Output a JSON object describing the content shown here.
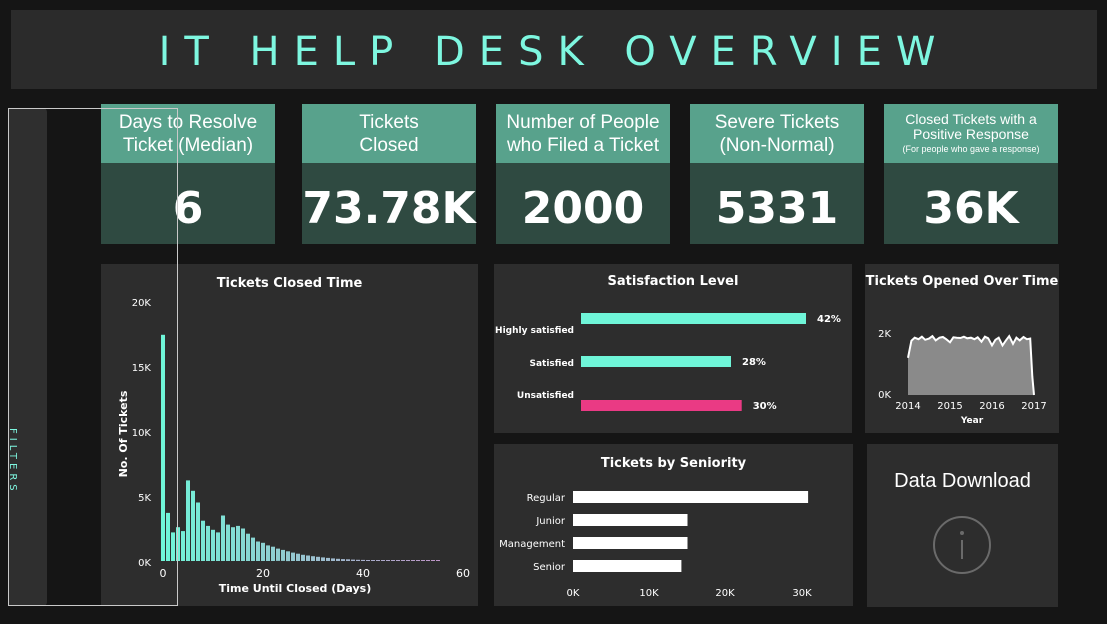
{
  "header": {
    "title": "IT HELP DESK OVERVIEW"
  },
  "filters": {
    "label": "FILTERS"
  },
  "kpis": [
    {
      "line1": "Days to Resolve",
      "line2": "Ticket (Median)",
      "value": "6"
    },
    {
      "line1": "Tickets",
      "line2": "Closed",
      "value": "73.78K"
    },
    {
      "line1": "Number of People",
      "line2": "who Filed a Ticket",
      "value": "2000"
    },
    {
      "line1": "Severe Tickets",
      "line2": "(Non-Normal)",
      "value": "5331"
    },
    {
      "line1": "Closed Tickets with a",
      "line2": "Positive Response",
      "note": "(For people who gave a response)",
      "value": "36K"
    }
  ],
  "colors": {
    "teal": "#6ff5d8",
    "pink": "#ea3a84",
    "kpi_header": "#58a28c",
    "kpi_body": "#2f4a41"
  },
  "data_download": {
    "title": "Data Download",
    "icon": "info-icon"
  },
  "chart_data": [
    {
      "type": "bar",
      "title": "Tickets Closed Time",
      "xlabel": "Time Until Closed (Days)",
      "ylabel": "No. Of Tickets",
      "xlim": [
        0,
        60
      ],
      "ylim": [
        0,
        20000
      ],
      "xticks": [
        "0",
        "20",
        "40",
        "60"
      ],
      "yticks": [
        "0K",
        "5K",
        "10K",
        "15K",
        "20K"
      ],
      "x": [
        0,
        1,
        2,
        3,
        4,
        5,
        6,
        7,
        8,
        9,
        10,
        11,
        12,
        13,
        14,
        15,
        16,
        17,
        18,
        19,
        20,
        21,
        22,
        23,
        24,
        25,
        26,
        27,
        28,
        29,
        30,
        31,
        32,
        33,
        34,
        35,
        36,
        37,
        38,
        39,
        40,
        41,
        42,
        43,
        44,
        45,
        46,
        47,
        48,
        49,
        50,
        51,
        52,
        53,
        54,
        55
      ],
      "values": [
        17400,
        3700,
        2200,
        2600,
        2300,
        6200,
        5400,
        4500,
        3100,
        2700,
        2400,
        2200,
        3500,
        2800,
        2600,
        2700,
        2500,
        2100,
        1800,
        1500,
        1400,
        1200,
        1100,
        950,
        850,
        750,
        650,
        560,
        480,
        420,
        370,
        320,
        280,
        240,
        200,
        170,
        150,
        130,
        110,
        95,
        85,
        75,
        65,
        55,
        45,
        40,
        35,
        30,
        28,
        25,
        20,
        18,
        16,
        14,
        12,
        10
      ]
    },
    {
      "type": "bar",
      "title": "Satisfaction Level",
      "categories": [
        "Highly satisfied",
        "Satisfied",
        "Unsatisfied"
      ],
      "values": [
        42,
        28,
        30
      ],
      "labels": [
        "42%",
        "28%",
        "30%"
      ]
    },
    {
      "type": "area",
      "title": "Tickets Opened Over Time",
      "xlabel": "Year",
      "xticks": [
        "2014",
        "2015",
        "2016",
        "2017"
      ],
      "yticks": [
        "0K",
        "2K"
      ],
      "ylim": [
        0,
        2000
      ],
      "x": [
        2014.0,
        2014.08,
        2014.16,
        2014.25,
        2014.33,
        2014.41,
        2014.5,
        2014.58,
        2014.66,
        2014.75,
        2014.83,
        2014.91,
        2015.0,
        2015.08,
        2015.16,
        2015.25,
        2015.33,
        2015.41,
        2015.5,
        2015.58,
        2015.66,
        2015.75,
        2015.83,
        2015.91,
        2016.0,
        2016.08,
        2016.16,
        2016.25,
        2016.33,
        2016.41,
        2016.5,
        2016.58,
        2016.66,
        2016.75,
        2016.83,
        2016.91,
        2016.96,
        2017.0
      ],
      "values": [
        1200,
        1750,
        1850,
        1800,
        1880,
        1780,
        1820,
        1900,
        1760,
        1850,
        1870,
        1800,
        1700,
        1860,
        1850,
        1840,
        1880,
        1830,
        1850,
        1800,
        1860,
        1720,
        1880,
        1830,
        1600,
        1780,
        1850,
        1600,
        1760,
        1900,
        1650,
        1850,
        1760,
        1870,
        1800,
        1820,
        600,
        0
      ]
    },
    {
      "type": "bar",
      "title": "Tickets by Seniority",
      "categories": [
        "Regular",
        "Junior",
        "Management",
        "Senior"
      ],
      "values": [
        30800,
        15000,
        15000,
        14200
      ],
      "xticks": [
        "0K",
        "10K",
        "20K",
        "30K"
      ],
      "xlim": [
        0,
        32000
      ]
    }
  ]
}
